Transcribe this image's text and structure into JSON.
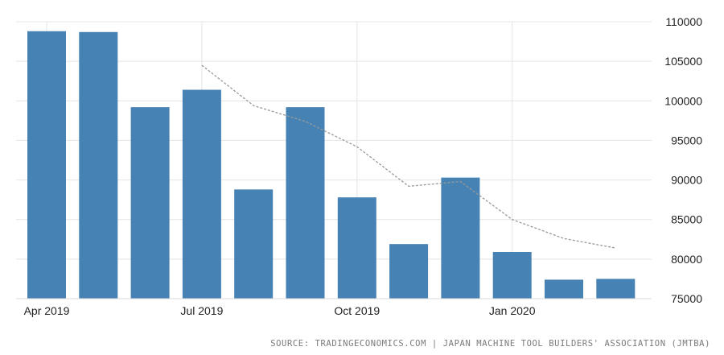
{
  "chart_data": {
    "type": "bar",
    "categories": [
      "Apr 2019",
      "May 2019",
      "Jun 2019",
      "Jul 2019",
      "Aug 2019",
      "Sep 2019",
      "Oct 2019",
      "Nov 2019",
      "Dec 2019",
      "Jan 2020",
      "Feb 2020",
      "Mar 2020"
    ],
    "series": [
      {
        "type": "bar",
        "values": [
          108800,
          108700,
          99200,
          101400,
          88800,
          99200,
          87800,
          81900,
          90300,
          80900,
          77400,
          77500
        ],
        "color": "#4682b4"
      },
      {
        "type": "line",
        "style": "dashed",
        "values": [
          null,
          null,
          null,
          104500,
          99400,
          97400,
          94200,
          89200,
          89800,
          85000,
          82600,
          81400
        ],
        "color": "#999999"
      }
    ],
    "x_tick_labels": [
      "Apr 2019",
      "Jul 2019",
      "Oct 2019",
      "Jan 2020"
    ],
    "y_ticks": [
      75000,
      80000,
      85000,
      90000,
      95000,
      100000,
      105000,
      110000
    ],
    "y_axis_position": "right",
    "ylim": [
      75000,
      110000
    ],
    "grid": true,
    "title": "",
    "xlabel": "",
    "ylabel": ""
  },
  "source_text": "SOURCE: TRADINGECONOMICS.COM | JAPAN MACHINE TOOL BUILDERS' ASSOCIATION (JMTBA)"
}
